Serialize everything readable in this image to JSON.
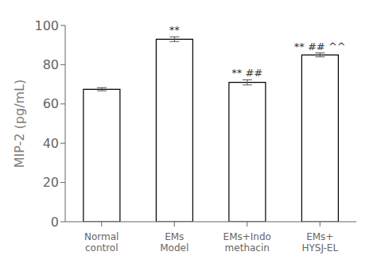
{
  "chart_data": {
    "type": "bar",
    "categories": [
      "Normal\ncontrol",
      "EMs\nModel",
      "EMs+Indo\nmethacin",
      "EMs+\nHYSJ-EL"
    ],
    "values": [
      67.5,
      93.0,
      71.0,
      85.0
    ],
    "errors": [
      0.8,
      1.2,
      1.3,
      1.0
    ],
    "color": "#ffffff",
    "ylabel": "MIP-2 (pg/mL)",
    "ylim": [
      0,
      100
    ],
    "yticks": [
      0,
      20,
      40,
      60,
      80,
      100
    ],
    "annotations": [
      {
        "category": "EMs\nModel",
        "text": "**"
      },
      {
        "category": "EMs+Indo\nmethacin",
        "text": "** ##"
      },
      {
        "category": "EMs+\nHYSJ-EL",
        "text": "** ## ^^"
      }
    ],
    "grid": false
  }
}
